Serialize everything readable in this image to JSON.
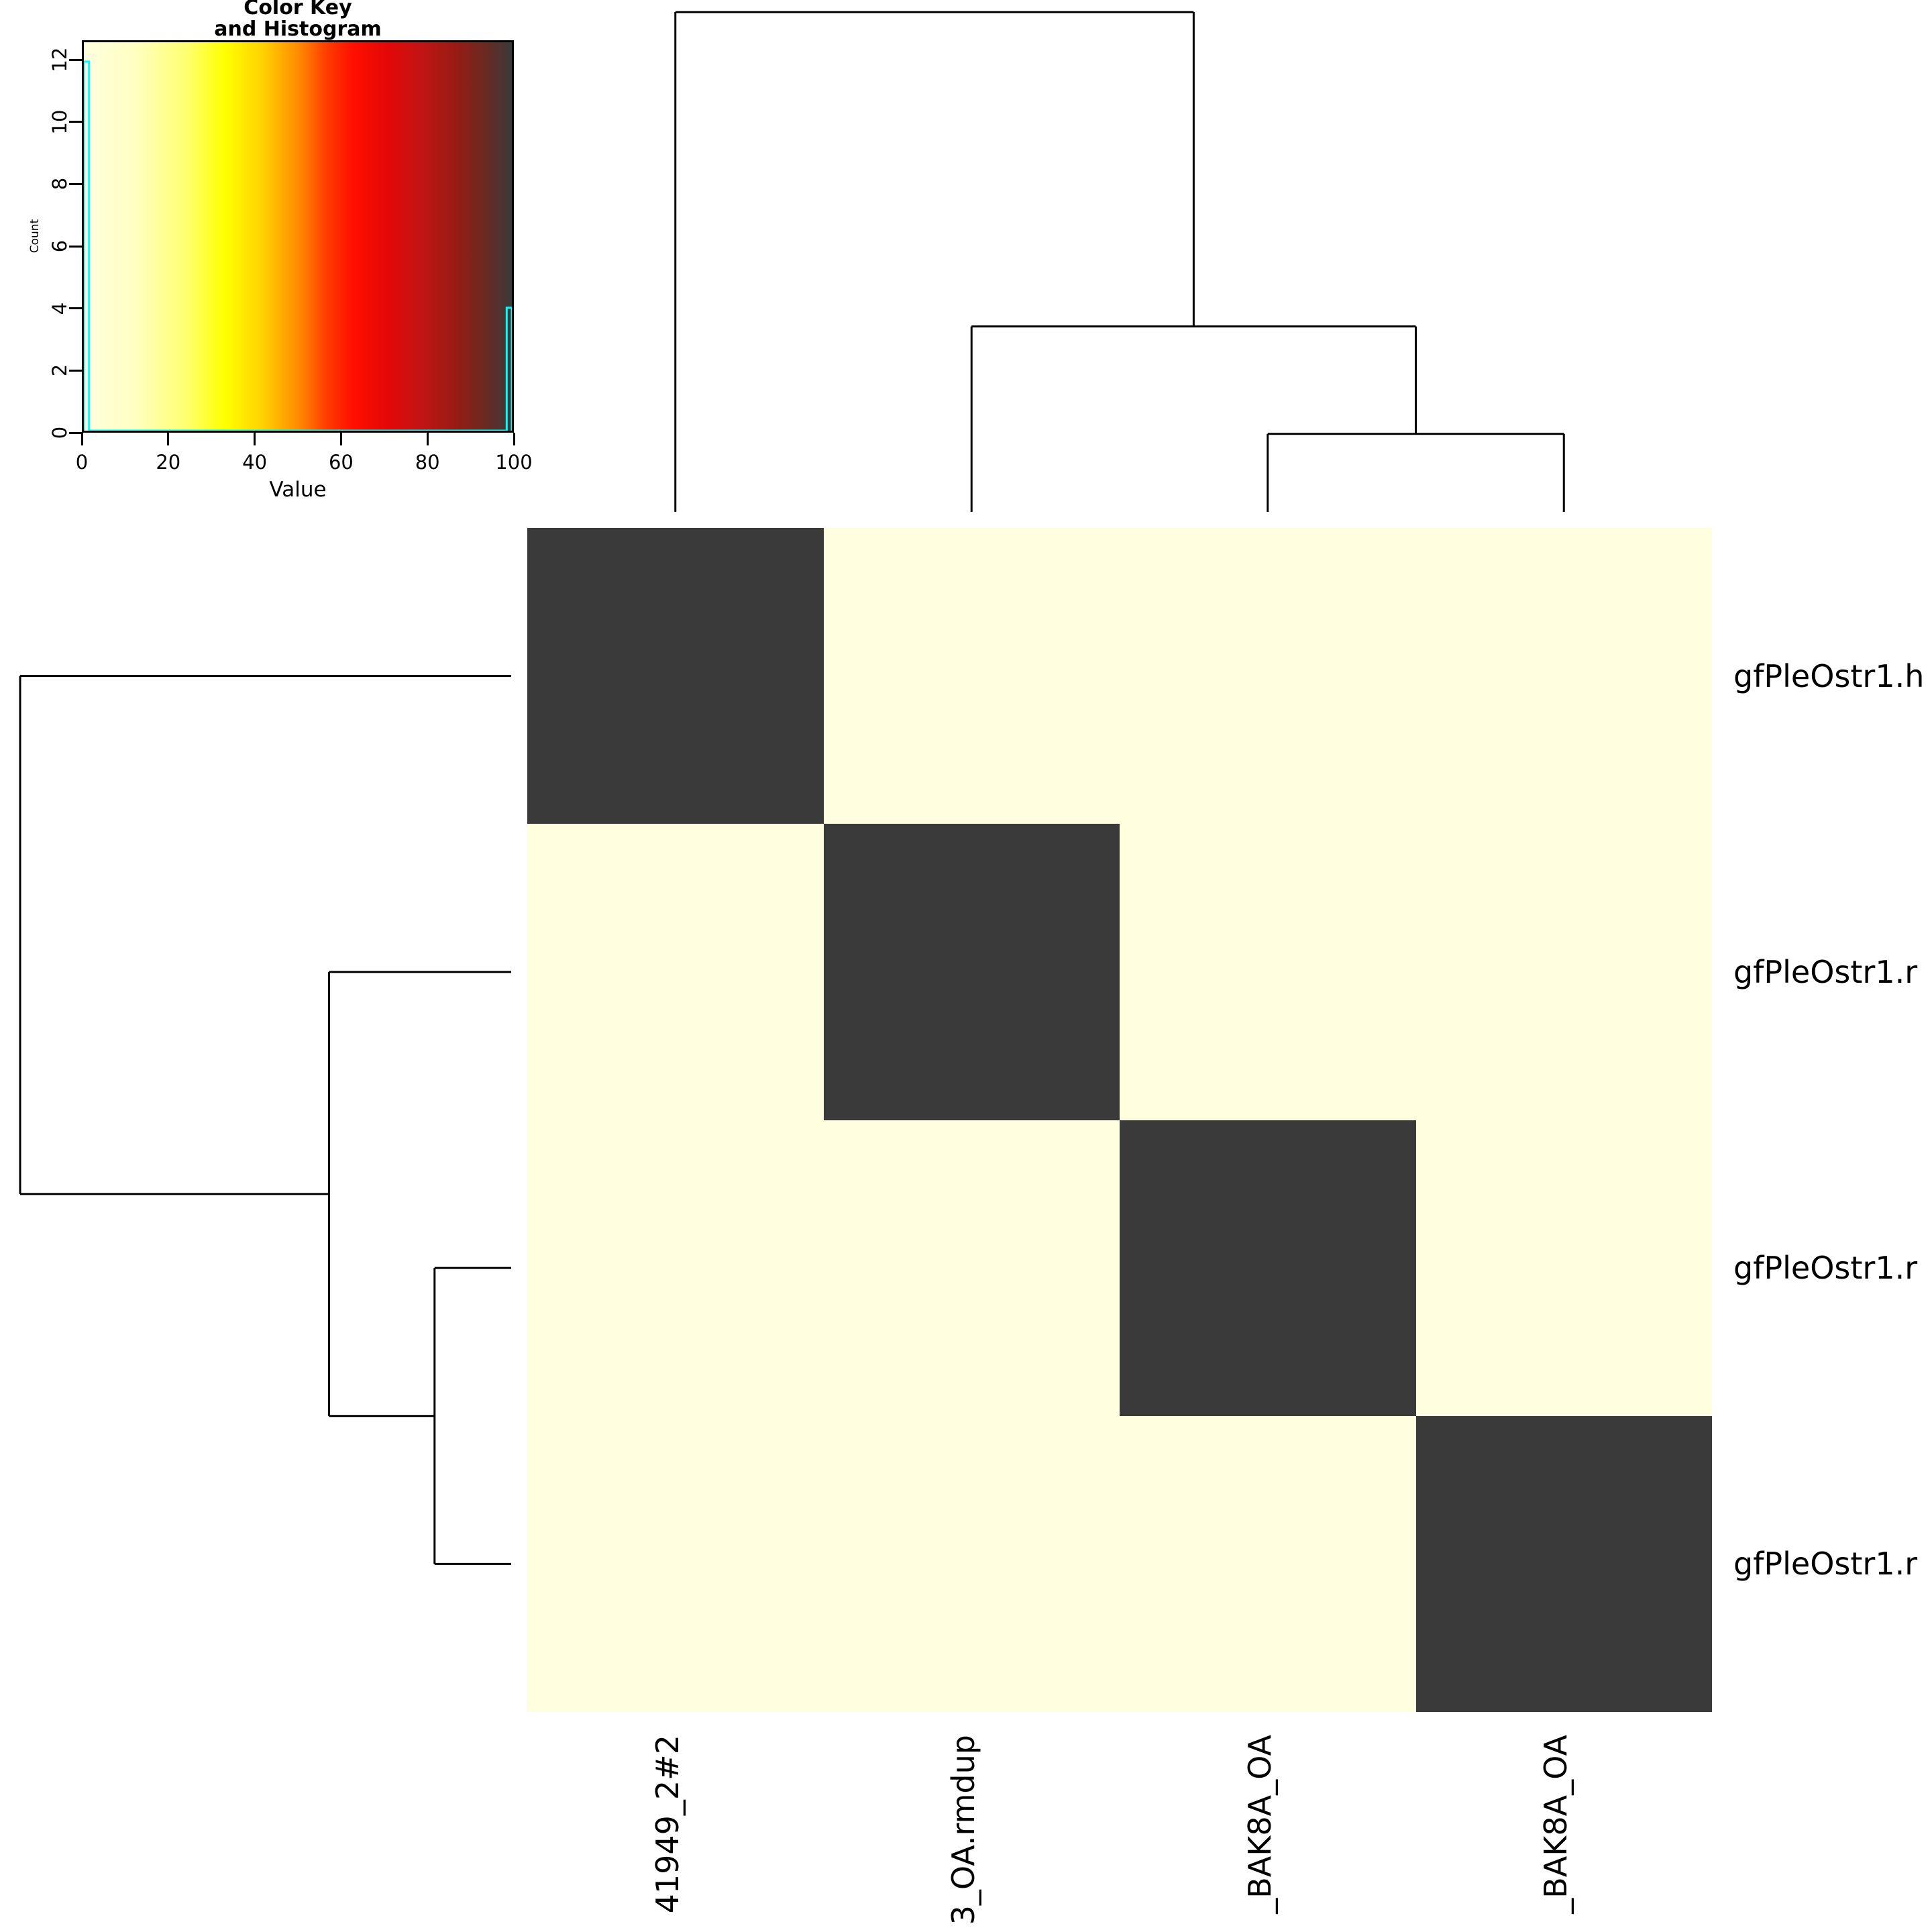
{
  "figure": {
    "background": "#ffffff"
  },
  "chart_data": {
    "type": "heatmap",
    "row_labels": [
      "gfPleOstr1.h",
      "gfPleOstr1.r",
      "gfPleOstr1.r",
      "gfPleOstr1.r"
    ],
    "col_labels": [
      "41949_2#2",
      "3_OA.rmdup",
      "_BAK8A_OA",
      "_BAK8A_OA"
    ],
    "matrix": [
      [
        100,
        0,
        0,
        0
      ],
      [
        0,
        100,
        0,
        0
      ],
      [
        0,
        0,
        100,
        0
      ],
      [
        0,
        0,
        0,
        100
      ]
    ],
    "value_range": [
      0,
      100
    ],
    "colors": {
      "line": "#000000",
      "histogram": "#00ffff",
      "cell_low": "#ffffe0",
      "cell_high": "#3a3a3a",
      "label_text": "#000000"
    },
    "gradient_stops": [
      [
        0,
        "#ffffe0"
      ],
      [
        12,
        "#ffffc2"
      ],
      [
        24,
        "#ffff70"
      ],
      [
        33,
        "#ffff00"
      ],
      [
        42,
        "#ffd000"
      ],
      [
        50,
        "#ff8c00"
      ],
      [
        57,
        "#ff3a00"
      ],
      [
        63,
        "#ff0f00"
      ],
      [
        71,
        "#e40707"
      ],
      [
        79,
        "#c21414"
      ],
      [
        87,
        "#971c14"
      ],
      [
        94,
        "#682a22"
      ],
      [
        100,
        "#3a3a3a"
      ]
    ],
    "color_key": {
      "title_line1": "Color Key",
      "title_line2": "and Histogram",
      "xlabel": "Value",
      "ylabel": "Count",
      "x_ticks": [
        0,
        20,
        40,
        60,
        80,
        100
      ],
      "y_ticks": [
        0,
        2,
        4,
        6,
        8,
        10,
        12
      ],
      "x_axis_max": 100,
      "y_axis_max": 12.63,
      "histogram_points": [
        [
          0,
          0
        ],
        [
          0,
          12
        ],
        [
          1.2,
          12
        ],
        [
          1.2,
          0
        ],
        [
          98.8,
          0
        ],
        [
          98.8,
          4
        ],
        [
          100,
          4
        ],
        [
          100,
          0
        ]
      ]
    },
    "dendrogram": {
      "leaf_count": 4,
      "merges": [
        {
          "a": "L2",
          "b": "L3",
          "height": 0.156
        },
        {
          "a": "L1",
          "b": "M0",
          "height": 0.371
        },
        {
          "a": "L0",
          "b": "M1",
          "height": 1.0
        }
      ]
    },
    "layout": {
      "legend_position": "top-left",
      "grid": false
    }
  }
}
